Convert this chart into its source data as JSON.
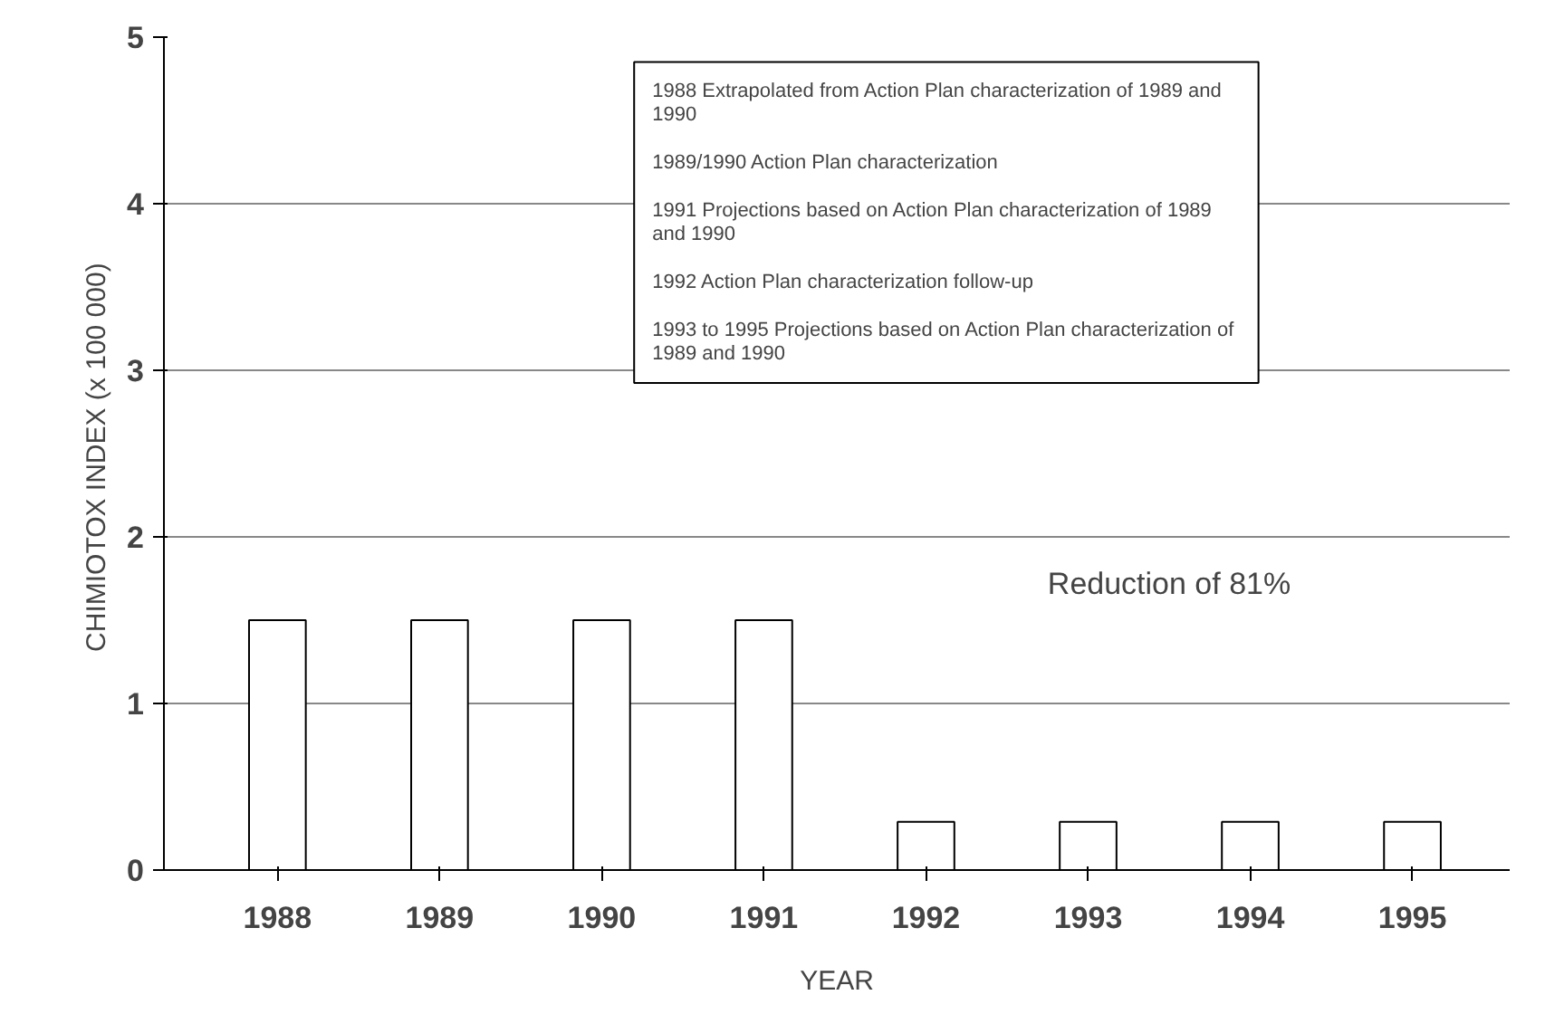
{
  "chart_data": {
    "type": "bar",
    "xlabel": "YEAR",
    "ylabel": "CHIMIOTOX INDEX  (x 100 000)",
    "categories": [
      "1988",
      "1989",
      "1990",
      "1991",
      "1992",
      "1993",
      "1994",
      "1995"
    ],
    "series": [
      {
        "color": "#ffffff",
        "values": [
          1.5,
          1.5,
          1.5,
          1.5,
          0.29,
          0.29,
          0.29,
          0.29
        ]
      }
    ],
    "ylim": [
      0,
      5
    ],
    "yticks": [
      0,
      1,
      2,
      3,
      4,
      5
    ],
    "grid": "y",
    "annotations": [
      "1988  Extrapolated from Action Plan characterization of 1989 and 1990",
      "1989/1990  Action Plan characterization",
      "1991  Projections based on Action Plan characterization of 1989 and 1990",
      "1992  Action Plan characterization follow-up",
      "1993 to 1995  Projections based on Action Plan characterization of 1989 and 1990",
      "Reduction of 81%"
    ]
  }
}
